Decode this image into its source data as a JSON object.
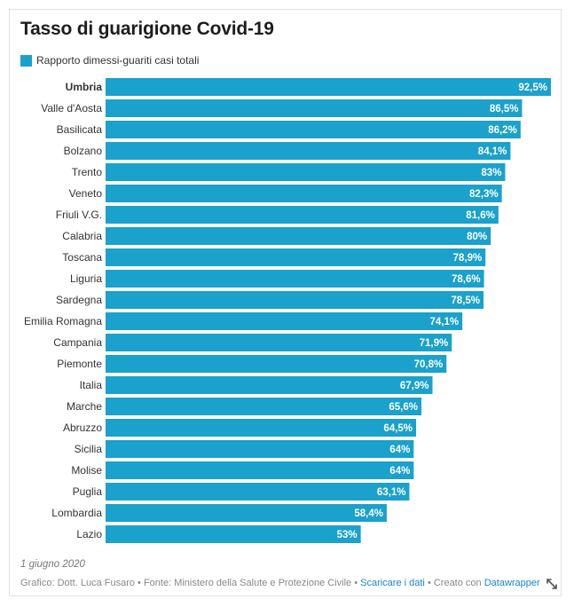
{
  "title": "Tasso di guarigione Covid-19",
  "legend": {
    "label": "Rapporto dimessi-guariti casi totali",
    "color": "#1aa1cc"
  },
  "chart_data": {
    "type": "bar",
    "orientation": "horizontal",
    "title": "Tasso di guarigione Covid-19",
    "xlim": [
      0,
      92.5
    ],
    "grid": false,
    "legend_position": "top-left",
    "highlighted_category": "Umbria",
    "categories": [
      "Umbria",
      "Valle d'Aosta",
      "Basilicata",
      "Bolzano",
      "Trento",
      "Veneto",
      "Friuli V.G.",
      "Calabria",
      "Toscana",
      "Liguria",
      "Sardegna",
      "Emilia Romagna",
      "Campania",
      "Piemonte",
      "Italia",
      "Marche",
      "Abruzzo",
      "Sicilia",
      "Molise",
      "Puglia",
      "Lombardia",
      "Lazio"
    ],
    "series": [
      {
        "name": "Rapporto dimessi-guariti casi totali",
        "color": "#1aa1cc",
        "values": [
          92.5,
          86.5,
          86.2,
          84.1,
          83,
          82.3,
          81.6,
          80,
          78.9,
          78.6,
          78.5,
          74.1,
          71.9,
          70.8,
          67.9,
          65.6,
          64.5,
          64,
          64,
          63.1,
          58.4,
          53
        ],
        "labels": [
          "92,5%",
          "86,5%",
          "86,2%",
          "84,1%",
          "83%",
          "82,3%",
          "81,6%",
          "80%",
          "78,9%",
          "78,6%",
          "78,5%",
          "74,1%",
          "71,9%",
          "70,8%",
          "67,9%",
          "65,6%",
          "64,5%",
          "64%",
          "64%",
          "63,1%",
          "58,4%",
          "53%"
        ]
      }
    ]
  },
  "footer": {
    "date": "1 giugno 2020",
    "credits_prefix": "Grafico: Dott. Luca Fusaro • Fonte: Ministero della Salute e Protezione Civile •",
    "download_link": "Scaricare i dati",
    "created_with": "• Creato con",
    "datawrapper_link": "Datawrapper"
  },
  "icons": {
    "resize": "resize-arrows-icon"
  }
}
